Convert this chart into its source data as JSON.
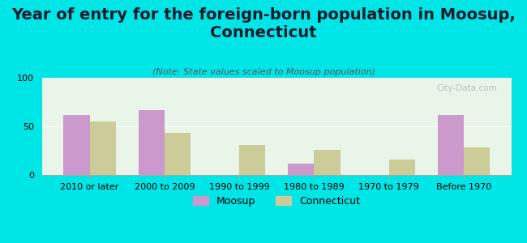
{
  "title": "Year of entry for the foreign-born population in Moosup,\nConnecticut",
  "subtitle": "(Note: State values scaled to Moosup population)",
  "categories": [
    "2010 or later",
    "2000 to 2009",
    "1990 to 1999",
    "1980 to 1989",
    "1970 to 1979",
    "Before 1970"
  ],
  "moosup_values": [
    62,
    67,
    0,
    12,
    0,
    62
  ],
  "connecticut_values": [
    55,
    43,
    31,
    26,
    16,
    28
  ],
  "moosup_color": "#cc99cc",
  "connecticut_color": "#cccc99",
  "background_color": "#00e5e5",
  "plot_bg_color_top": "#e8f5e8",
  "plot_bg_color_bottom": "#f5fff5",
  "ylim": [
    0,
    100
  ],
  "yticks": [
    0,
    50,
    100
  ],
  "bar_width": 0.35,
  "title_fontsize": 14,
  "subtitle_fontsize": 8,
  "tick_fontsize": 8,
  "legend_fontsize": 9,
  "watermark": "City-Data.com"
}
